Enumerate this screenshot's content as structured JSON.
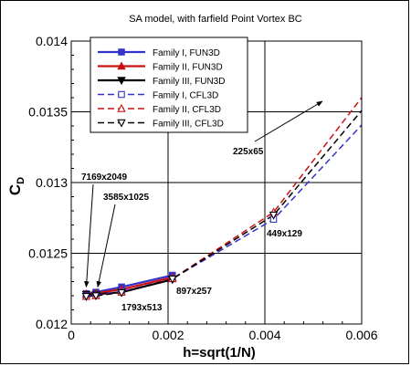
{
  "chart_data": {
    "type": "line",
    "title": "SA model, with farfield Point Vortex BC",
    "xlabel": "h=sqrt(1/N)",
    "ylabel": "C",
    "ylabel_sub": "D",
    "xlim": [
      0,
      0.006
    ],
    "ylim": [
      0.012,
      0.014
    ],
    "grid": true,
    "legend_position": "top-left",
    "x_ticks": [
      {
        "value": 0,
        "label": "0"
      },
      {
        "value": 0.002,
        "label": "0.002"
      },
      {
        "value": 0.004,
        "label": "0.004"
      },
      {
        "value": 0.006,
        "label": "0.006"
      }
    ],
    "y_ticks": [
      {
        "value": 0.012,
        "label": "0.012"
      },
      {
        "value": 0.0125,
        "label": "0.0125"
      },
      {
        "value": 0.013,
        "label": "0.013"
      },
      {
        "value": 0.0135,
        "label": "0.0135"
      },
      {
        "value": 0.014,
        "label": "0.014"
      }
    ],
    "series": [
      {
        "name": "Family I, FUN3D",
        "color": "#3333cc",
        "dash": "solid",
        "marker": "square-filled",
        "x": [
          0.00031,
          0.00051,
          0.00104,
          0.00209
        ],
        "y": [
          0.012215,
          0.012225,
          0.012262,
          0.012345
        ]
      },
      {
        "name": "Family II, FUN3D",
        "color": "#cc1111",
        "dash": "solid",
        "marker": "triangle-up-filled",
        "x": [
          0.00031,
          0.00051,
          0.00104,
          0.00209
        ],
        "y": [
          0.012212,
          0.012218,
          0.012245,
          0.01233
        ]
      },
      {
        "name": "Family III, FUN3D",
        "color": "#000000",
        "dash": "solid",
        "marker": "triangle-down-filled",
        "x": [
          0.00031,
          0.00051,
          0.00104,
          0.00209
        ],
        "y": [
          0.012208,
          0.01221,
          0.012225,
          0.012315
        ]
      },
      {
        "name": "Family I, CFL3D",
        "color": "#3333cc",
        "dash": "dashed",
        "marker": "square-open",
        "x": [
          0.00031,
          0.00051,
          0.00104,
          0.00209,
          0.00418,
          0.0062
        ],
        "y": [
          0.0122,
          0.012205,
          0.01223,
          0.01232,
          0.01274,
          0.01348
        ]
      },
      {
        "name": "Family II, CFL3D",
        "color": "#cc1111",
        "dash": "dashed",
        "marker": "triangle-up-open",
        "x": [
          0.00031,
          0.00051,
          0.00104,
          0.00209,
          0.00418,
          0.0062
        ],
        "y": [
          0.012195,
          0.0122,
          0.012225,
          0.01232,
          0.01279,
          0.01369
        ]
      },
      {
        "name": "Family III, CFL3D",
        "color": "#000000",
        "dash": "dashed",
        "marker": "triangle-down-open",
        "x": [
          0.00031,
          0.00051,
          0.00104,
          0.00209,
          0.00418,
          0.0062
        ],
        "y": [
          0.012195,
          0.0122,
          0.012222,
          0.012318,
          0.01277,
          0.01359
        ]
      }
    ],
    "annotations": [
      {
        "text": "7169x2049",
        "point": [
          0.00031,
          0.01221
        ],
        "arrow": true
      },
      {
        "text": "3585x1025",
        "point": [
          0.00051,
          0.01221
        ],
        "arrow": true
      },
      {
        "text": "1793x513",
        "point": [
          0.00104,
          0.01222
        ],
        "arrow": false
      },
      {
        "text": "897x257",
        "point": [
          0.00209,
          0.01232
        ],
        "arrow": false
      },
      {
        "text": "449x129",
        "point": [
          0.00418,
          0.01274
        ],
        "arrow": false
      },
      {
        "text": "225x65",
        "point": [
          0.0062,
          0.01349
        ],
        "arrow": true
      }
    ]
  }
}
